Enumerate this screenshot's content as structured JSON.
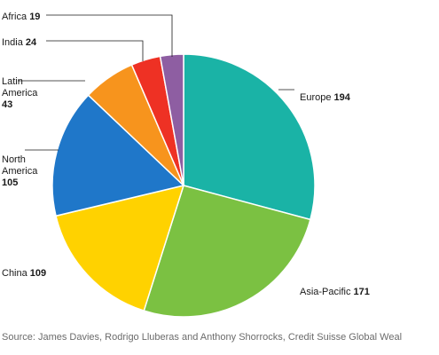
{
  "chart_data": {
    "type": "pie",
    "title": "",
    "slices": [
      {
        "label": "Europe",
        "lines": [
          "Europe"
        ],
        "value": 194,
        "color": "#1ab3a6"
      },
      {
        "label": "Asia-Pacific",
        "lines": [
          "Asia-Pacific"
        ],
        "value": 171,
        "color": "#7bc142"
      },
      {
        "label": "China",
        "lines": [
          "China"
        ],
        "value": 109,
        "color": "#ffd200"
      },
      {
        "label": "North America",
        "lines": [
          "North",
          "America"
        ],
        "value": 105,
        "color": "#1f77c9"
      },
      {
        "label": "Latin America",
        "lines": [
          "Latin",
          "America"
        ],
        "value": 43,
        "color": "#f7941d"
      },
      {
        "label": "India",
        "lines": [
          "India"
        ],
        "value": 24,
        "color": "#ee3124"
      },
      {
        "label": "Africa",
        "lines": [
          "Africa"
        ],
        "value": 19,
        "color": "#8e5ea2"
      }
    ]
  },
  "source": "Source: James Davies, Rodrigo Lluberas and Anthony Shorrocks, Credit Suisse Global Weal"
}
